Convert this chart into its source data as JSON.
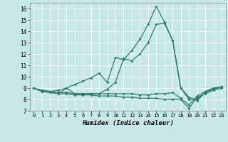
{
  "xlabel": "Humidex (Indice chaleur)",
  "xlim": [
    -0.5,
    23.5
  ],
  "ylim": [
    7,
    16.5
  ],
  "yticks": [
    7,
    8,
    9,
    10,
    11,
    12,
    13,
    14,
    15,
    16
  ],
  "xticks": [
    0,
    1,
    2,
    3,
    4,
    5,
    6,
    7,
    8,
    9,
    10,
    11,
    12,
    13,
    14,
    15,
    16,
    17,
    18,
    19,
    20,
    21,
    22,
    23
  ],
  "bg_color": "#c8e8e8",
  "grid_color": "#b0d0d0",
  "line_color": "#2e7b6e",
  "lines": [
    {
      "x": [
        0,
        1,
        2,
        3,
        4,
        5,
        6,
        7,
        8,
        9,
        10,
        11,
        12,
        13,
        14,
        15,
        16,
        17,
        18,
        19,
        20,
        21,
        22,
        23
      ],
      "y": [
        9.0,
        8.8,
        8.7,
        8.8,
        9.0,
        9.3,
        9.6,
        9.9,
        10.3,
        9.5,
        11.7,
        11.5,
        12.3,
        13.3,
        14.6,
        16.2,
        14.8,
        13.2,
        9.0,
        8.2,
        7.9,
        8.6,
        9.0,
        9.1
      ]
    },
    {
      "x": [
        0,
        1,
        2,
        3,
        4,
        5,
        6,
        7,
        8,
        9,
        10,
        11,
        12,
        13,
        14,
        15,
        16,
        17,
        18,
        19,
        20,
        21,
        22,
        23
      ],
      "y": [
        9.0,
        8.7,
        8.7,
        8.5,
        9.0,
        8.5,
        8.5,
        8.5,
        8.5,
        8.9,
        9.5,
        11.6,
        11.4,
        12.0,
        13.0,
        14.6,
        14.7,
        13.2,
        9.0,
        8.0,
        8.0,
        8.6,
        8.9,
        9.1
      ]
    },
    {
      "x": [
        0,
        1,
        2,
        3,
        4,
        5,
        6,
        7,
        8,
        9,
        10,
        11,
        12,
        13,
        14,
        15,
        16,
        17,
        18,
        19,
        20,
        21,
        22,
        23
      ],
      "y": [
        9.0,
        8.7,
        8.6,
        8.5,
        8.5,
        8.4,
        8.4,
        8.4,
        8.3,
        8.3,
        8.3,
        8.2,
        8.2,
        8.1,
        8.1,
        8.1,
        8.0,
        8.0,
        8.0,
        7.2,
        8.2,
        8.5,
        8.8,
        9.0
      ]
    },
    {
      "x": [
        0,
        1,
        2,
        3,
        4,
        5,
        6,
        7,
        8,
        9,
        10,
        11,
        12,
        13,
        14,
        15,
        16,
        17,
        18,
        19,
        20,
        21,
        22,
        23
      ],
      "y": [
        9.0,
        8.8,
        8.7,
        8.6,
        8.6,
        8.5,
        8.5,
        8.5,
        8.5,
        8.5,
        8.5,
        8.5,
        8.5,
        8.4,
        8.4,
        8.5,
        8.5,
        8.6,
        8.1,
        7.5,
        8.3,
        8.7,
        9.0,
        9.1
      ]
    }
  ]
}
